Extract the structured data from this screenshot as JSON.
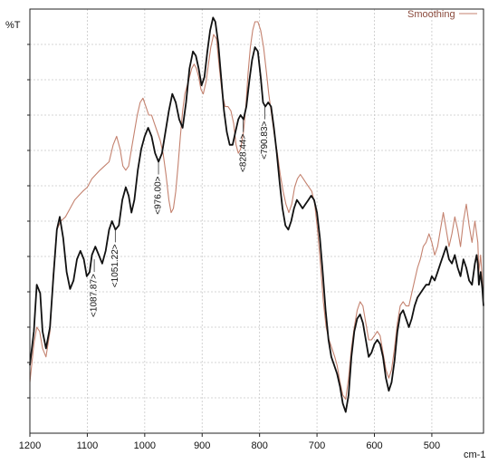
{
  "chart_data": {
    "type": "line",
    "xlabel": "cm-1",
    "ylabel": "%T",
    "xlim": [
      1200,
      410
    ],
    "ylim": [
      0,
      100
    ],
    "x_reversed": true,
    "grid": true,
    "legend_position": "top-right",
    "x_ticks": [
      {
        "value": 1200,
        "label": "1200"
      },
      {
        "value": 1100,
        "label": "1100"
      },
      {
        "value": 1000,
        "label": "1000"
      },
      {
        "value": 900,
        "label": "900"
      },
      {
        "value": 800,
        "label": "800"
      },
      {
        "value": 700,
        "label": "700"
      },
      {
        "value": 600,
        "label": "600"
      },
      {
        "value": 500,
        "label": "500"
      }
    ],
    "series": [
      {
        "name": "",
        "color": "#111111",
        "points": [
          [
            1200,
            16
          ],
          [
            1193,
            24
          ],
          [
            1188,
            35
          ],
          [
            1182,
            33
          ],
          [
            1178,
            24
          ],
          [
            1172,
            20
          ],
          [
            1165,
            25
          ],
          [
            1159,
            37
          ],
          [
            1153,
            48
          ],
          [
            1148,
            51
          ],
          [
            1142,
            46
          ],
          [
            1136,
            38
          ],
          [
            1130,
            34
          ],
          [
            1124,
            36
          ],
          [
            1118,
            41
          ],
          [
            1112,
            43
          ],
          [
            1106,
            41
          ],
          [
            1101,
            37
          ],
          [
            1096,
            38
          ],
          [
            1092,
            42
          ],
          [
            1086,
            44
          ],
          [
            1080,
            42
          ],
          [
            1074,
            40
          ],
          [
            1068,
            43
          ],
          [
            1062,
            48
          ],
          [
            1057,
            50
          ],
          [
            1051,
            48
          ],
          [
            1045,
            49
          ],
          [
            1039,
            55
          ],
          [
            1033,
            58
          ],
          [
            1028,
            56
          ],
          [
            1023,
            52
          ],
          [
            1018,
            55
          ],
          [
            1012,
            62
          ],
          [
            1006,
            67
          ],
          [
            1000,
            70
          ],
          [
            994,
            72
          ],
          [
            988,
            70
          ],
          [
            982,
            66
          ],
          [
            976,
            64
          ],
          [
            970,
            66
          ],
          [
            964,
            71
          ],
          [
            958,
            76
          ],
          [
            952,
            80
          ],
          [
            946,
            78
          ],
          [
            940,
            74
          ],
          [
            934,
            72
          ],
          [
            928,
            78
          ],
          [
            922,
            86
          ],
          [
            916,
            90
          ],
          [
            911,
            89
          ],
          [
            906,
            86
          ],
          [
            901,
            82
          ],
          [
            896,
            84
          ],
          [
            891,
            90
          ],
          [
            886,
            95
          ],
          [
            881,
            98
          ],
          [
            877,
            97
          ],
          [
            872,
            92
          ],
          [
            867,
            84
          ],
          [
            862,
            76
          ],
          [
            857,
            71
          ],
          [
            852,
            68
          ],
          [
            847,
            68
          ],
          [
            842,
            71
          ],
          [
            837,
            74
          ],
          [
            833,
            75
          ],
          [
            828,
            74
          ],
          [
            823,
            77
          ],
          [
            818,
            83
          ],
          [
            813,
            88
          ],
          [
            808,
            91
          ],
          [
            803,
            90
          ],
          [
            798,
            84
          ],
          [
            794,
            78
          ],
          [
            790,
            77
          ],
          [
            785,
            78
          ],
          [
            780,
            77
          ],
          [
            775,
            72
          ],
          [
            770,
            66
          ],
          [
            765,
            59
          ],
          [
            760,
            53
          ],
          [
            755,
            49
          ],
          [
            750,
            48
          ],
          [
            745,
            50
          ],
          [
            740,
            53
          ],
          [
            735,
            55
          ],
          [
            730,
            54
          ],
          [
            725,
            53
          ],
          [
            720,
            54
          ],
          [
            715,
            55
          ],
          [
            710,
            56
          ],
          [
            705,
            55
          ],
          [
            700,
            52
          ],
          [
            695,
            46
          ],
          [
            690,
            38
          ],
          [
            685,
            29
          ],
          [
            680,
            22
          ],
          [
            675,
            18
          ],
          [
            670,
            16
          ],
          [
            665,
            14
          ],
          [
            660,
            11
          ],
          [
            655,
            7
          ],
          [
            650,
            5
          ],
          [
            645,
            9
          ],
          [
            640,
            18
          ],
          [
            635,
            24
          ],
          [
            630,
            27
          ],
          [
            625,
            28
          ],
          [
            620,
            26
          ],
          [
            615,
            22
          ],
          [
            610,
            18
          ],
          [
            605,
            19
          ],
          [
            600,
            21
          ],
          [
            595,
            22
          ],
          [
            590,
            21
          ],
          [
            585,
            18
          ],
          [
            580,
            13
          ],
          [
            575,
            10
          ],
          [
            570,
            12
          ],
          [
            565,
            17
          ],
          [
            560,
            24
          ],
          [
            555,
            28
          ],
          [
            550,
            29
          ],
          [
            545,
            27
          ],
          [
            540,
            25
          ],
          [
            535,
            27
          ],
          [
            530,
            30
          ],
          [
            525,
            32
          ],
          [
            520,
            33
          ],
          [
            515,
            34
          ],
          [
            510,
            35
          ],
          [
            505,
            35
          ],
          [
            500,
            37
          ],
          [
            495,
            36
          ],
          [
            490,
            38
          ],
          [
            485,
            40
          ],
          [
            480,
            42
          ],
          [
            475,
            44
          ],
          [
            470,
            41
          ],
          [
            465,
            40
          ],
          [
            460,
            42
          ],
          [
            455,
            39
          ],
          [
            450,
            37
          ],
          [
            445,
            41
          ],
          [
            440,
            39
          ],
          [
            435,
            36
          ],
          [
            430,
            35
          ],
          [
            425,
            40
          ],
          [
            422,
            42
          ],
          [
            420,
            40
          ],
          [
            418,
            35
          ],
          [
            415,
            38
          ],
          [
            412,
            34
          ],
          [
            410,
            30
          ]
        ]
      },
      {
        "name": "Smoothing",
        "color": "#c4826f",
        "points": [
          [
            1200,
            12
          ],
          [
            1193,
            21
          ],
          [
            1188,
            25
          ],
          [
            1183,
            24
          ],
          [
            1178,
            20
          ],
          [
            1172,
            18
          ],
          [
            1165,
            24
          ],
          [
            1159,
            38
          ],
          [
            1153,
            48
          ],
          [
            1146,
            50
          ],
          [
            1138,
            51
          ],
          [
            1130,
            53
          ],
          [
            1122,
            55
          ],
          [
            1115,
            56
          ],
          [
            1108,
            57
          ],
          [
            1100,
            58
          ],
          [
            1092,
            60
          ],
          [
            1085,
            61
          ],
          [
            1078,
            62
          ],
          [
            1070,
            63
          ],
          [
            1062,
            64
          ],
          [
            1055,
            68
          ],
          [
            1049,
            70
          ],
          [
            1043,
            67
          ],
          [
            1038,
            63
          ],
          [
            1033,
            62
          ],
          [
            1028,
            63
          ],
          [
            1023,
            67
          ],
          [
            1018,
            71
          ],
          [
            1013,
            75
          ],
          [
            1008,
            78
          ],
          [
            1003,
            79
          ],
          [
            998,
            77
          ],
          [
            993,
            75
          ],
          [
            988,
            75
          ],
          [
            983,
            73
          ],
          [
            978,
            71
          ],
          [
            973,
            69
          ],
          [
            968,
            66
          ],
          [
            963,
            61
          ],
          [
            958,
            55
          ],
          [
            954,
            52
          ],
          [
            950,
            53
          ],
          [
            946,
            57
          ],
          [
            942,
            63
          ],
          [
            938,
            70
          ],
          [
            934,
            76
          ],
          [
            930,
            80
          ],
          [
            926,
            82
          ],
          [
            922,
            84
          ],
          [
            918,
            86
          ],
          [
            914,
            87
          ],
          [
            910,
            86
          ],
          [
            906,
            84
          ],
          [
            902,
            81
          ],
          [
            898,
            80
          ],
          [
            893,
            83
          ],
          [
            889,
            87
          ],
          [
            885,
            91
          ],
          [
            880,
            94
          ],
          [
            875,
            93
          ],
          [
            870,
            86
          ],
          [
            865,
            80
          ],
          [
            860,
            77
          ],
          [
            855,
            77
          ],
          [
            850,
            76
          ],
          [
            845,
            73
          ],
          [
            841,
            68
          ],
          [
            837,
            66
          ],
          [
            833,
            67
          ],
          [
            828,
            71
          ],
          [
            824,
            77
          ],
          [
            820,
            85
          ],
          [
            816,
            91
          ],
          [
            812,
            95
          ],
          [
            808,
            97
          ],
          [
            803,
            97
          ],
          [
            798,
            95
          ],
          [
            793,
            91
          ],
          [
            788,
            85
          ],
          [
            784,
            80
          ],
          [
            779,
            75
          ],
          [
            774,
            70
          ],
          [
            769,
            66
          ],
          [
            764,
            61
          ],
          [
            759,
            57
          ],
          [
            754,
            54
          ],
          [
            749,
            52
          ],
          [
            744,
            54
          ],
          [
            739,
            58
          ],
          [
            734,
            60
          ],
          [
            729,
            61
          ],
          [
            724,
            60
          ],
          [
            719,
            59
          ],
          [
            714,
            58
          ],
          [
            709,
            57
          ],
          [
            704,
            54
          ],
          [
            699,
            48
          ],
          [
            694,
            40
          ],
          [
            689,
            31
          ],
          [
            684,
            25
          ],
          [
            679,
            22
          ],
          [
            674,
            20
          ],
          [
            669,
            18
          ],
          [
            665,
            16
          ],
          [
            660,
            12
          ],
          [
            655,
            9
          ],
          [
            650,
            8
          ],
          [
            645,
            13
          ],
          [
            640,
            20
          ],
          [
            635,
            25
          ],
          [
            630,
            29
          ],
          [
            625,
            31
          ],
          [
            620,
            30
          ],
          [
            615,
            26
          ],
          [
            610,
            22
          ],
          [
            605,
            22
          ],
          [
            600,
            23
          ],
          [
            595,
            24
          ],
          [
            590,
            23
          ],
          [
            585,
            19
          ],
          [
            580,
            15
          ],
          [
            575,
            13
          ],
          [
            570,
            15
          ],
          [
            565,
            20
          ],
          [
            560,
            26
          ],
          [
            555,
            30
          ],
          [
            550,
            31
          ],
          [
            545,
            30
          ],
          [
            540,
            30
          ],
          [
            535,
            33
          ],
          [
            530,
            36
          ],
          [
            525,
            39
          ],
          [
            520,
            41
          ],
          [
            515,
            44
          ],
          [
            510,
            45
          ],
          [
            505,
            47
          ],
          [
            500,
            45
          ],
          [
            495,
            42
          ],
          [
            490,
            44
          ],
          [
            485,
            48
          ],
          [
            480,
            52
          ],
          [
            475,
            48
          ],
          [
            470,
            44
          ],
          [
            465,
            47
          ],
          [
            460,
            51
          ],
          [
            455,
            48
          ],
          [
            450,
            44
          ],
          [
            445,
            50
          ],
          [
            440,
            54
          ],
          [
            435,
            49
          ],
          [
            430,
            45
          ],
          [
            425,
            50
          ],
          [
            420,
            45
          ],
          [
            418,
            38
          ],
          [
            415,
            42
          ],
          [
            412,
            36
          ],
          [
            410,
            30
          ]
        ]
      }
    ],
    "annotations": [
      {
        "label": "<1087.87>",
        "x": 1087.87,
        "y": 41
      },
      {
        "label": "<1051.22>",
        "x": 1051.22,
        "y": 48
      },
      {
        "label": "<976.00>",
        "x": 976.0,
        "y": 64
      },
      {
        "label": "<828.44>",
        "x": 828.44,
        "y": 74
      },
      {
        "label": "<790.83>",
        "x": 790.83,
        "y": 77
      }
    ],
    "colors": {
      "grid": "#c8c8c8",
      "axis": "#222222"
    }
  }
}
